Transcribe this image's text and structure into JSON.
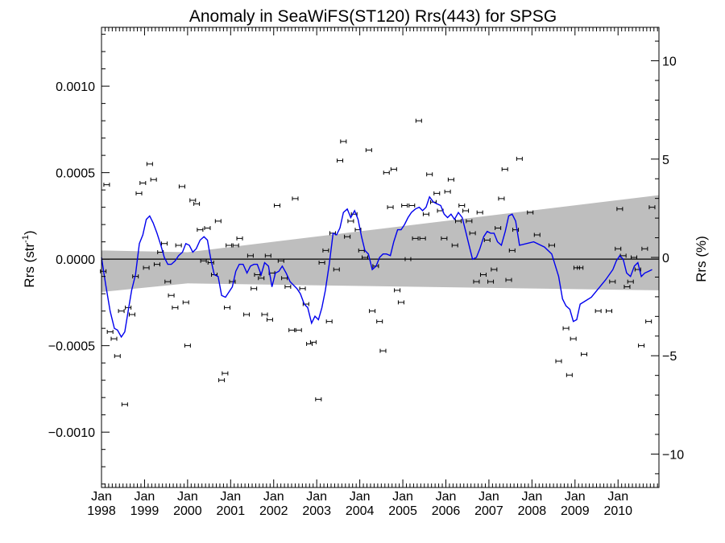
{
  "chart_data": {
    "type": "scatter",
    "title": "Anomaly in SeaWiFS(ST120) Rrs(443) for SPSG",
    "ylabel_left_main": "Rrs (str",
    "ylabel_left_sup": "-1",
    "ylabel_left_close": ")",
    "ylabel_right": "Rrs (%)",
    "xlim": [
      1998.0,
      2010.95
    ],
    "ylim": [
      -0.00132,
      0.00134
    ],
    "ylim_right": [
      -11.7,
      11.7
    ],
    "x_ticks": [
      {
        "v": 1998,
        "m": "Jan",
        "y": "1998"
      },
      {
        "v": 1999,
        "m": "Jan",
        "y": "1999"
      },
      {
        "v": 2000,
        "m": "Jan",
        "y": "2000"
      },
      {
        "v": 2001,
        "m": "Jan",
        "y": "2001"
      },
      {
        "v": 2002,
        "m": "Jan",
        "y": "2002"
      },
      {
        "v": 2003,
        "m": "Jan",
        "y": "2003"
      },
      {
        "v": 2004,
        "m": "Jan",
        "y": "2004"
      },
      {
        "v": 2005,
        "m": "Jan",
        "y": "2005"
      },
      {
        "v": 2006,
        "m": "Jan",
        "y": "2006"
      },
      {
        "v": 2007,
        "m": "Jan",
        "y": "2007"
      },
      {
        "v": 2008,
        "m": "Jan",
        "y": "2008"
      },
      {
        "v": 2009,
        "m": "Jan",
        "y": "2009"
      },
      {
        "v": 2010,
        "m": "Jan",
        "y": "2010"
      }
    ],
    "y_ticks_left": [
      {
        "v": 0.001,
        "label": "0.0010"
      },
      {
        "v": 0.0005,
        "label": "0.0005"
      },
      {
        "v": 0.0,
        "label": "0.0000"
      },
      {
        "v": -0.0005,
        "label": "−0.0005"
      },
      {
        "v": -0.001,
        "label": "−0.0010"
      }
    ],
    "y_ticks_right": [
      {
        "v": 10,
        "label": "10"
      },
      {
        "v": 5,
        "label": "5"
      },
      {
        "v": 0,
        "label": "0"
      },
      {
        "v": -5,
        "label": "−5"
      },
      {
        "v": -10,
        "label": "−10"
      }
    ],
    "trend_band": {
      "x": [
        1998.0,
        2000.0,
        2010.95
      ],
      "upper": [
        5e-05,
        4e-05,
        0.00037
      ],
      "lower": [
        -0.00019,
        -0.00014,
        -0.00018
      ]
    },
    "points": [
      [
        1998.04,
        -7e-05
      ],
      [
        1998.12,
        0.00043
      ],
      [
        1998.2,
        -0.00042
      ],
      [
        1998.29,
        -0.00046
      ],
      [
        1998.37,
        -0.00056
      ],
      [
        1998.46,
        -0.0003
      ],
      [
        1998.54,
        -0.00084
      ],
      [
        1998.62,
        -0.00028
      ],
      [
        1998.71,
        -0.00032
      ],
      [
        1998.79,
        -0.0001
      ],
      [
        1998.87,
        0.00038
      ],
      [
        1998.96,
        0.00044
      ],
      [
        1999.04,
        -5e-05
      ],
      [
        1999.12,
        0.00055
      ],
      [
        1999.21,
        0.00046
      ],
      [
        1999.29,
        -3e-05
      ],
      [
        1999.37,
        4e-05
      ],
      [
        1999.46,
        9e-05
      ],
      [
        1999.54,
        -0.00013
      ],
      [
        1999.62,
        -0.00021
      ],
      [
        1999.71,
        -0.00028
      ],
      [
        1999.79,
        8e-05
      ],
      [
        1999.87,
        0.00042
      ],
      [
        1999.96,
        -0.00025
      ],
      [
        2000.0,
        -0.0005
      ],
      [
        2000.12,
        0.00034
      ],
      [
        2000.21,
        0.00032
      ],
      [
        2000.29,
        0.00017
      ],
      [
        2000.37,
        -1e-05
      ],
      [
        2000.46,
        0.00018
      ],
      [
        2000.54,
        -2e-05
      ],
      [
        2000.62,
        -9e-05
      ],
      [
        2000.71,
        0.00022
      ],
      [
        2000.79,
        -0.0007
      ],
      [
        2000.87,
        -0.00066
      ],
      [
        2000.92,
        -0.00028
      ],
      [
        2000.96,
        8e-05
      ],
      [
        2001.04,
        -0.00013
      ],
      [
        2001.12,
        8e-05
      ],
      [
        2001.21,
        0.00012
      ],
      [
        2001.37,
        -0.00032
      ],
      [
        2001.46,
        2e-05
      ],
      [
        2001.54,
        -0.00017
      ],
      [
        2001.62,
        -9e-05
      ],
      [
        2001.71,
        -0.00011
      ],
      [
        2001.79,
        -0.00032
      ],
      [
        2001.87,
        2e-05
      ],
      [
        2001.91,
        -0.00035
      ],
      [
        2001.96,
        -8e-05
      ],
      [
        2002.08,
        0.00031
      ],
      [
        2002.17,
        -1e-05
      ],
      [
        2002.25,
        -0.00011
      ],
      [
        2002.33,
        -0.00016
      ],
      [
        2002.42,
        -0.00041
      ],
      [
        2002.5,
        0.00035
      ],
      [
        2002.58,
        -0.00041
      ],
      [
        2002.67,
        -0.00017
      ],
      [
        2002.75,
        -0.00026
      ],
      [
        2002.83,
        -0.00049
      ],
      [
        2002.92,
        -0.00048
      ],
      [
        2003.04,
        -0.00081
      ],
      [
        2003.12,
        -2e-05
      ],
      [
        2003.21,
        5e-05
      ],
      [
        2003.29,
        -0.00036
      ],
      [
        2003.37,
        0.00015
      ],
      [
        2003.46,
        -6e-05
      ],
      [
        2003.54,
        0.00057
      ],
      [
        2003.62,
        0.00068
      ],
      [
        2003.71,
        0.00013
      ],
      [
        2003.79,
        0.00022
      ],
      [
        2003.87,
        0.00026
      ],
      [
        2003.96,
        0.00017
      ],
      [
        2004.04,
        5e-05
      ],
      [
        2004.12,
        1e-05
      ],
      [
        2004.21,
        0.00063
      ],
      [
        2004.29,
        -0.0003
      ],
      [
        2004.37,
        -4e-05
      ],
      [
        2004.46,
        -0.00036
      ],
      [
        2004.54,
        -0.00053
      ],
      [
        2004.62,
        0.0005
      ],
      [
        2004.71,
        0.0003
      ],
      [
        2004.79,
        0.00052
      ],
      [
        2004.87,
        -0.00018
      ],
      [
        2004.96,
        -0.00025
      ],
      [
        2005.04,
        0.00031
      ],
      [
        2005.12,
        0.0
      ],
      [
        2005.21,
        0.00031
      ],
      [
        2005.29,
        0.00012
      ],
      [
        2005.37,
        0.0008
      ],
      [
        2005.46,
        0.00012
      ],
      [
        2005.54,
        0.00026
      ],
      [
        2005.62,
        0.00049
      ],
      [
        2005.71,
        0.00033
      ],
      [
        2005.79,
        0.00038
      ],
      [
        2005.87,
        0.00028
      ],
      [
        2005.96,
        0.00012
      ],
      [
        2006.04,
        0.00039
      ],
      [
        2006.12,
        0.00046
      ],
      [
        2006.21,
        8e-05
      ],
      [
        2006.29,
        0.00022
      ],
      [
        2006.37,
        0.00031
      ],
      [
        2006.46,
        0.00028
      ],
      [
        2006.54,
        0.00022
      ],
      [
        2006.62,
        0.00015
      ],
      [
        2006.71,
        -0.00013
      ],
      [
        2006.79,
        0.00027
      ],
      [
        2006.87,
        -9e-05
      ],
      [
        2006.96,
        0.00011
      ],
      [
        2007.04,
        -0.00013
      ],
      [
        2007.12,
        -6e-05
      ],
      [
        2007.21,
        0.00018
      ],
      [
        2007.29,
        0.00035
      ],
      [
        2007.37,
        0.00052
      ],
      [
        2007.46,
        -0.00012
      ],
      [
        2007.54,
        5e-05
      ],
      [
        2007.62,
        0.00017
      ],
      [
        2007.71,
        0.00058
      ],
      [
        2007.96,
        0.00027
      ],
      [
        2008.12,
        0.00014
      ],
      [
        2008.46,
        8e-05
      ],
      [
        2008.62,
        -0.00059
      ],
      [
        2008.79,
        -0.0004
      ],
      [
        2008.87,
        -0.00067
      ],
      [
        2008.96,
        -0.00046
      ],
      [
        2009.04,
        -5e-05
      ],
      [
        2009.12,
        -5e-05
      ],
      [
        2009.21,
        -0.00055
      ],
      [
        2009.54,
        -0.0003
      ],
      [
        2009.79,
        -0.0003
      ],
      [
        2009.87,
        -0.00013
      ],
      [
        2010.0,
        6e-05
      ],
      [
        2010.04,
        0.00029
      ],
      [
        2010.12,
        2e-05
      ],
      [
        2010.21,
        -0.00016
      ],
      [
        2010.29,
        -0.00013
      ],
      [
        2010.37,
        1e-05
      ],
      [
        2010.46,
        -6e-05
      ],
      [
        2010.54,
        -0.0005
      ],
      [
        2010.62,
        6e-05
      ],
      [
        2010.71,
        -0.00036
      ],
      [
        2010.79,
        0.0003
      ]
    ],
    "running_mean": [
      [
        1998.0,
        1e-05
      ],
      [
        1998.1,
        -0.00015
      ],
      [
        1998.2,
        -0.0003
      ],
      [
        1998.3,
        -0.0004
      ],
      [
        1998.37,
        -0.00041
      ],
      [
        1998.46,
        -0.00045
      ],
      [
        1998.54,
        -0.00042
      ],
      [
        1998.62,
        -0.0003
      ],
      [
        1998.7,
        -0.00018
      ],
      [
        1998.79,
        -9e-05
      ],
      [
        1998.88,
        9e-05
      ],
      [
        1998.96,
        0.00014
      ],
      [
        1999.04,
        0.00023
      ],
      [
        1999.12,
        0.00025
      ],
      [
        1999.2,
        0.00021
      ],
      [
        1999.29,
        0.00015
      ],
      [
        1999.38,
        8e-05
      ],
      [
        1999.46,
        1e-05
      ],
      [
        1999.54,
        -3e-05
      ],
      [
        1999.62,
        -3e-05
      ],
      [
        1999.71,
        -1e-05
      ],
      [
        1999.79,
        2e-05
      ],
      [
        1999.88,
        4e-05
      ],
      [
        1999.96,
        9e-05
      ],
      [
        2000.04,
        8e-05
      ],
      [
        2000.12,
        4e-05
      ],
      [
        2000.2,
        6e-05
      ],
      [
        2000.29,
        0.00011
      ],
      [
        2000.38,
        0.00013
      ],
      [
        2000.46,
        0.00011
      ],
      [
        2000.54,
        0.0
      ],
      [
        2000.62,
        -9e-05
      ],
      [
        2000.71,
        -0.0001
      ],
      [
        2000.79,
        -0.00021
      ],
      [
        2000.88,
        -0.00022
      ],
      [
        2000.96,
        -0.00019
      ],
      [
        2001.04,
        -0.00016
      ],
      [
        2001.12,
        -7e-05
      ],
      [
        2001.2,
        -3e-05
      ],
      [
        2001.29,
        -3e-05
      ],
      [
        2001.38,
        -8e-05
      ],
      [
        2001.46,
        -4e-05
      ],
      [
        2001.54,
        -3e-05
      ],
      [
        2001.62,
        -3e-05
      ],
      [
        2001.71,
        -9e-05
      ],
      [
        2001.79,
        -2e-05
      ],
      [
        2001.88,
        -4e-05
      ],
      [
        2001.96,
        -0.00016
      ],
      [
        2002.04,
        -8e-05
      ],
      [
        2002.12,
        -7e-05
      ],
      [
        2002.2,
        -4e-05
      ],
      [
        2002.29,
        -8e-05
      ],
      [
        2002.38,
        -0.00013
      ],
      [
        2002.46,
        -0.00015
      ],
      [
        2002.54,
        -0.00017
      ],
      [
        2002.62,
        -0.0002
      ],
      [
        2002.71,
        -0.00026
      ],
      [
        2002.79,
        -0.00028
      ],
      [
        2002.88,
        -0.00037
      ],
      [
        2002.96,
        -0.00033
      ],
      [
        2003.04,
        -0.00035
      ],
      [
        2003.12,
        -0.00028
      ],
      [
        2003.2,
        -0.00018
      ],
      [
        2003.29,
        -3e-05
      ],
      [
        2003.38,
        0.00015
      ],
      [
        2003.46,
        0.00014
      ],
      [
        2003.54,
        0.00018
      ],
      [
        2003.62,
        0.00027
      ],
      [
        2003.71,
        0.00029
      ],
      [
        2003.79,
        0.00024
      ],
      [
        2003.88,
        0.00028
      ],
      [
        2003.96,
        0.00023
      ],
      [
        2004.04,
        0.00013
      ],
      [
        2004.12,
        5e-05
      ],
      [
        2004.2,
        3e-05
      ],
      [
        2004.29,
        -6e-05
      ],
      [
        2004.38,
        -4e-05
      ],
      [
        2004.46,
        1e-05
      ],
      [
        2004.54,
        3e-05
      ],
      [
        2004.62,
        3e-05
      ],
      [
        2004.71,
        2e-05
      ],
      [
        2004.79,
        0.0001
      ],
      [
        2004.88,
        0.00017
      ],
      [
        2004.96,
        0.00017
      ],
      [
        2005.04,
        0.0002
      ],
      [
        2005.12,
        0.00024
      ],
      [
        2005.2,
        0.00027
      ],
      [
        2005.29,
        0.00029
      ],
      [
        2005.38,
        0.0003
      ],
      [
        2005.46,
        0.00028
      ],
      [
        2005.54,
        0.0003
      ],
      [
        2005.62,
        0.00036
      ],
      [
        2005.71,
        0.00033
      ],
      [
        2005.79,
        0.00032
      ],
      [
        2005.88,
        0.00031
      ],
      [
        2005.96,
        0.00026
      ],
      [
        2006.04,
        0.00024
      ],
      [
        2006.12,
        0.00026
      ],
      [
        2006.2,
        0.00023
      ],
      [
        2006.29,
        0.00027
      ],
      [
        2006.38,
        0.00024
      ],
      [
        2006.46,
        0.00016
      ],
      [
        2006.54,
        8e-05
      ],
      [
        2006.62,
        0.0
      ],
      [
        2006.71,
        1e-05
      ],
      [
        2006.79,
        6e-05
      ],
      [
        2006.88,
        0.00013
      ],
      [
        2006.96,
        0.00016
      ],
      [
        2007.04,
        0.00015
      ],
      [
        2007.12,
        0.00015
      ],
      [
        2007.2,
        0.0001
      ],
      [
        2007.29,
        8e-05
      ],
      [
        2007.38,
        0.00016
      ],
      [
        2007.46,
        0.00025
      ],
      [
        2007.54,
        0.00026
      ],
      [
        2007.62,
        0.00022
      ],
      [
        2007.71,
        8e-05
      ],
      [
        2008.04,
        0.0001
      ],
      [
        2008.29,
        7e-05
      ],
      [
        2008.46,
        3e-05
      ],
      [
        2008.62,
        -0.0001
      ],
      [
        2008.71,
        -0.00023
      ],
      [
        2008.79,
        -0.00027
      ],
      [
        2008.88,
        -0.00029
      ],
      [
        2008.96,
        -0.00036
      ],
      [
        2009.04,
        -0.00035
      ],
      [
        2009.12,
        -0.00026
      ],
      [
        2009.38,
        -0.00022
      ],
      [
        2009.71,
        -0.00012
      ],
      [
        2009.88,
        -6e-05
      ],
      [
        2009.96,
        -1e-05
      ],
      [
        2010.04,
        2e-05
      ],
      [
        2010.12,
        0.0
      ],
      [
        2010.2,
        -8e-05
      ],
      [
        2010.29,
        -0.0001
      ],
      [
        2010.38,
        -4e-05
      ],
      [
        2010.46,
        -2e-05
      ],
      [
        2010.54,
        -0.0001
      ],
      [
        2010.62,
        -8e-05
      ],
      [
        2010.71,
        -7e-05
      ],
      [
        2010.79,
        -6e-05
      ]
    ],
    "colors": {
      "running_mean": "#0000ee",
      "band": "#bebebe",
      "points": "#000000",
      "axes": "#000000"
    },
    "grid": false
  }
}
